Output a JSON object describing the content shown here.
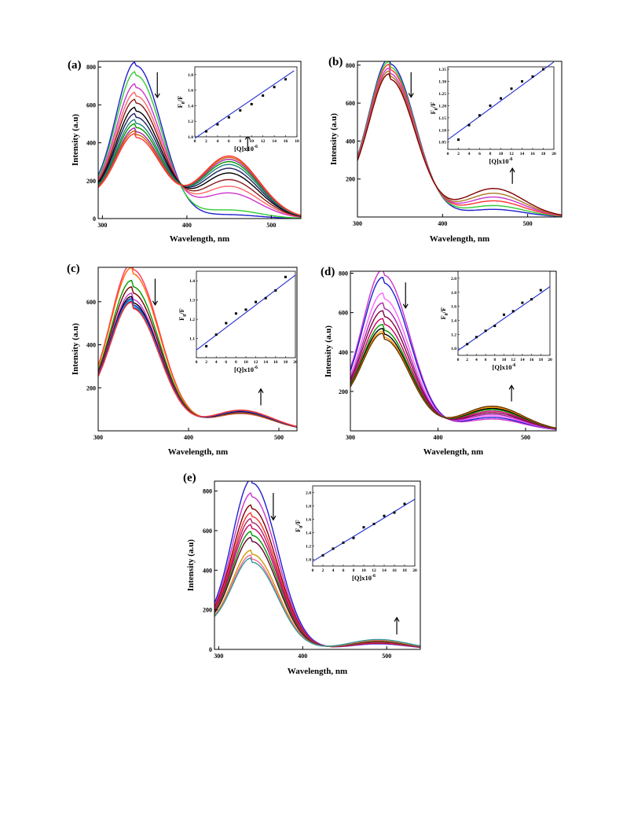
{
  "figure": {
    "panels": [
      {
        "label": "(a)",
        "xlabel": "Wavelength, nm",
        "ylabel": "Intensity (a.u)",
        "xticks": [
          "300",
          "400",
          "500"
        ],
        "yticks": [
          "0",
          "200",
          "400",
          "600",
          "800"
        ],
        "inset_xlabel": "[Q]x10",
        "inset_xexp": "-6",
        "inset_ylabel": "F",
        "inset_ysub": "0",
        "inset_ylabel_tail": "/F",
        "inset_xticks": [
          "0",
          "2",
          "4",
          "6",
          "8",
          "10",
          "12",
          "14",
          "16",
          "18"
        ],
        "inset_yticks": [
          "1.0",
          "1.2",
          "1.4",
          "1.6",
          "1.8"
        ]
      },
      {
        "label": "(b)",
        "xlabel": "Wavelength, nm",
        "ylabel": "Intensity (a.u)",
        "xticks": [
          "300",
          "400",
          "500"
        ],
        "yticks": [
          "200",
          "400",
          "600",
          "800"
        ],
        "inset_xlabel": "[Q]x10",
        "inset_xexp": "-6",
        "inset_ylabel": "F",
        "inset_ysub": "0",
        "inset_ylabel_tail": "/F",
        "inset_xticks": [
          "0",
          "2",
          "4",
          "6",
          "8",
          "10",
          "12",
          "14",
          "16",
          "18",
          "20"
        ],
        "inset_yticks": [
          "1.05",
          "1.10",
          "1.15",
          "1.20",
          "1.25",
          "1.30",
          "1.35"
        ]
      },
      {
        "label": "(c)",
        "xlabel": "Wavelength, nm",
        "ylabel": "Intensity (a.u)",
        "xticks": [
          "300",
          "400",
          "500"
        ],
        "yticks": [
          "200",
          "400",
          "600"
        ],
        "inset_xlabel": "[Q]x10",
        "inset_xexp": "-6",
        "inset_ylabel": "F",
        "inset_ysub": "0",
        "inset_ylabel_tail": "/F",
        "inset_xticks": [
          "0",
          "2",
          "4",
          "6",
          "8",
          "10",
          "12",
          "14",
          "16",
          "18",
          "20"
        ],
        "inset_yticks": [
          "1.1",
          "1.2",
          "1.3",
          "1.4"
        ]
      },
      {
        "label": "(d)",
        "xlabel": "Wavelength, nm",
        "ylabel": "Intensity (a.u)",
        "xticks": [
          "300",
          "400",
          "500"
        ],
        "yticks": [
          "200",
          "400",
          "600",
          "800"
        ],
        "inset_xlabel": "[Q]x10",
        "inset_xexp": "-6",
        "inset_ylabel": "F",
        "inset_ysub": "0",
        "inset_ylabel_tail": "/F",
        "inset_xticks": [
          "0",
          "2",
          "4",
          "6",
          "8",
          "10",
          "12",
          "14",
          "16",
          "18",
          "20"
        ],
        "inset_yticks": [
          "1.0",
          "1.2",
          "1.4",
          "1.6",
          "1.8",
          "2.0"
        ]
      },
      {
        "label": "(e)",
        "xlabel": "Wavelength, nm",
        "ylabel": "Intensity (a.u)",
        "xticks": [
          "300",
          "400",
          "500"
        ],
        "yticks": [
          "0",
          "200",
          "400",
          "600",
          "800"
        ],
        "inset_xlabel": "[Q]x10",
        "inset_xexp": "-6",
        "inset_ylabel": "F",
        "inset_ysub": "0",
        "inset_ylabel_tail": "/F",
        "inset_xticks": [
          "0",
          "2",
          "4",
          "6",
          "8",
          "10",
          "12",
          "14",
          "16",
          "18",
          "20"
        ],
        "inset_yticks": [
          "1.0",
          "1.2",
          "1.4",
          "1.6",
          "1.8",
          "2.0"
        ]
      }
    ]
  },
  "chart_data": [
    {
      "type": "line",
      "title": "(a)",
      "xlabel": "Wavelength, nm",
      "ylabel": "Intensity (a.u)",
      "xlim": [
        295,
        535
      ],
      "ylim": [
        0,
        830
      ],
      "grid": false,
      "peak1_x": 340,
      "peak2_x": 450,
      "series_colors": [
        "#1f1fd0",
        "#33cc33",
        "#cc33cc",
        "#ff6666",
        "#8b1a1a",
        "#000000",
        "#202060",
        "#208080",
        "#009900",
        "#aa22aa",
        "#cc6600",
        "#ff3333"
      ],
      "peak1_values": [
        806,
        755,
        690,
        645,
        608,
        565,
        532,
        500,
        478,
        455,
        440,
        425
      ],
      "peak2_values": [
        20,
        45,
        135,
        170,
        205,
        240,
        265,
        285,
        300,
        312,
        322,
        330
      ],
      "inset": {
        "type": "scatter",
        "xlim": [
          0,
          18
        ],
        "ylim": [
          1.0,
          1.9
        ],
        "x": [
          2,
          4,
          6,
          8,
          10,
          12,
          14,
          16
        ],
        "y": [
          1.07,
          1.16,
          1.25,
          1.34,
          1.42,
          1.53,
          1.64,
          1.74
        ],
        "fit": [
          [
            0,
            0.98
          ],
          [
            17.5,
            1.85
          ]
        ]
      }
    },
    {
      "type": "line",
      "title": "(b)",
      "xlabel": "Wavelength, nm",
      "ylabel": "Intensity (a.u)",
      "xlim": [
        300,
        540
      ],
      "ylim": [
        0,
        820
      ],
      "grid": false,
      "peak1_x": 338,
      "peak2_x": 460,
      "series_colors": [
        "#1f1fd0",
        "#33cc33",
        "#ff3333",
        "#cc33cc",
        "#aa7722",
        "#800000"
      ],
      "peak1_values": [
        806,
        790,
        775,
        755,
        740,
        725
      ],
      "peak2_values": [
        40,
        60,
        85,
        105,
        125,
        150
      ],
      "inset": {
        "type": "scatter",
        "xlim": [
          0,
          20
        ],
        "ylim": [
          1.02,
          1.36
        ],
        "x": [
          2,
          4,
          6,
          8,
          10,
          12,
          14,
          16,
          18
        ],
        "y": [
          1.06,
          1.12,
          1.16,
          1.2,
          1.23,
          1.27,
          1.3,
          1.32,
          1.35
        ],
        "fit": [
          [
            0,
            1.06
          ],
          [
            20,
            1.38
          ]
        ]
      }
    },
    {
      "type": "line",
      "title": "(c)",
      "xlabel": "Wavelength, nm",
      "ylabel": "Intensity (a.u)",
      "xlim": [
        300,
        520
      ],
      "ylim": [
        0,
        760
      ],
      "grid": false,
      "peak1_x": 338,
      "peak2_x": 458,
      "series_colors": [
        "#ff3366",
        "#ff6600",
        "#009900",
        "#800000",
        "#cc33cc",
        "#000000",
        "#1f1fd0",
        "#00bbbb",
        "#663399",
        "#ff3333"
      ],
      "peak1_values": [
        750,
        730,
        670,
        640,
        610,
        595,
        585,
        578,
        572,
        568
      ],
      "peak2_values": [
        80,
        82,
        84,
        86,
        88,
        90,
        92,
        94,
        95,
        96
      ],
      "inset": {
        "type": "scatter",
        "xlim": [
          0,
          20
        ],
        "ylim": [
          1.0,
          1.45
        ],
        "x": [
          2,
          4,
          6,
          8,
          10,
          12,
          14,
          16,
          18
        ],
        "y": [
          1.06,
          1.12,
          1.18,
          1.23,
          1.25,
          1.29,
          1.31,
          1.35,
          1.42
        ],
        "fit": [
          [
            0,
            1.04
          ],
          [
            20,
            1.43
          ]
        ]
      }
    },
    {
      "type": "line",
      "title": "(d)",
      "xlabel": "Wavelength, nm",
      "ylabel": "Intensity (a.u)",
      "xlim": [
        300,
        535
      ],
      "ylim": [
        0,
        810
      ],
      "grid": false,
      "peak1_x": 338,
      "peak2_x": 462,
      "series_colors": [
        "#cc33cc",
        "#1f1fd0",
        "#ff66ff",
        "#aa22aa",
        "#800040",
        "#cc0066",
        "#009900",
        "#000000",
        "#ff9900",
        "#663300"
      ],
      "peak1_values": [
        790,
        750,
        670,
        620,
        580,
        540,
        510,
        490,
        475,
        465
      ],
      "peak2_values": [
        60,
        68,
        76,
        84,
        92,
        100,
        108,
        114,
        120,
        125
      ],
      "inset": {
        "type": "scatter",
        "xlim": [
          0,
          20
        ],
        "ylim": [
          0.9,
          2.1
        ],
        "x": [
          2,
          4,
          6,
          8,
          10,
          12,
          14,
          16,
          18
        ],
        "y": [
          1.06,
          1.16,
          1.25,
          1.32,
          1.48,
          1.53,
          1.65,
          1.7,
          1.83
        ],
        "fit": [
          [
            0,
            0.97
          ],
          [
            20,
            1.88
          ]
        ]
      }
    },
    {
      "type": "line",
      "title": "(e)",
      "xlabel": "Wavelength, nm",
      "ylabel": "Intensity (a.u)",
      "xlim": [
        295,
        540
      ],
      "ylim": [
        0,
        850
      ],
      "grid": false,
      "peak1_x": 340,
      "peak2_x": 490,
      "series_colors": [
        "#1f1fd0",
        "#cc33cc",
        "#800000",
        "#ff3333",
        "#aa2266",
        "#cc0066",
        "#009900",
        "#660033",
        "#cc9900",
        "#ff6699",
        "#339999"
      ],
      "peak1_values": [
        840,
        770,
        710,
        670,
        640,
        610,
        575,
        545,
        480,
        455,
        440
      ],
      "peak2_values": [
        28,
        30,
        32,
        34,
        36,
        38,
        40,
        42,
        45,
        48,
        50
      ],
      "inset": {
        "type": "scatter",
        "xlim": [
          0,
          20
        ],
        "ylim": [
          0.9,
          2.1
        ],
        "x": [
          2,
          4,
          6,
          8,
          10,
          12,
          14,
          16,
          18
        ],
        "y": [
          1.06,
          1.16,
          1.25,
          1.32,
          1.48,
          1.53,
          1.65,
          1.7,
          1.83
        ],
        "fit": [
          [
            0,
            0.97
          ],
          [
            20,
            1.9
          ]
        ]
      }
    }
  ]
}
